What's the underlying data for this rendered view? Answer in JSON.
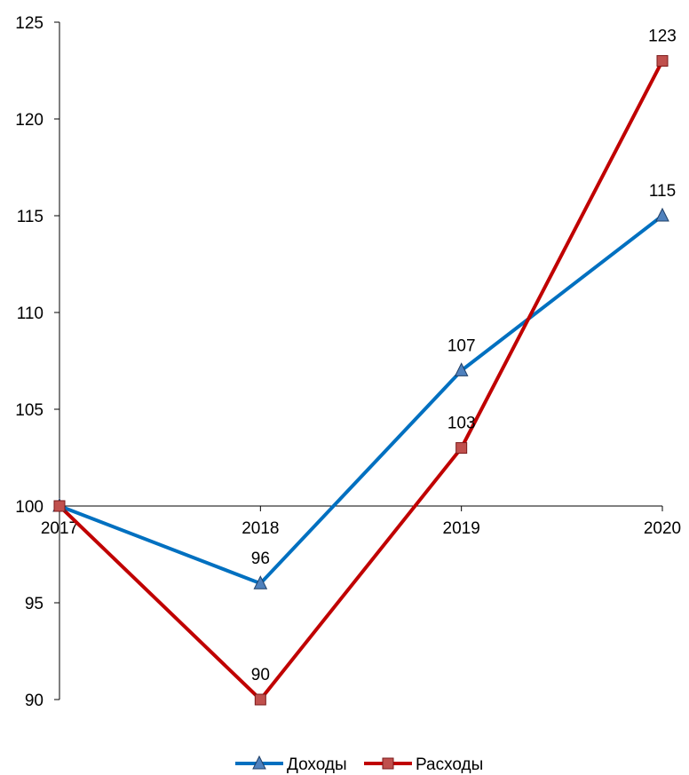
{
  "chart_data": {
    "type": "line",
    "categories": [
      "2017",
      "2018",
      "2019",
      "2020"
    ],
    "ylim": [
      90,
      125
    ],
    "y_ticks": [
      90,
      95,
      100,
      105,
      110,
      115,
      120,
      125
    ],
    "y_tick_labels": [
      "90",
      "95",
      "100",
      "105",
      "110",
      "115",
      "120",
      "125"
    ],
    "x_axis_crosses_at": 100,
    "grid": false,
    "legend": "bottom",
    "series": [
      {
        "name": "Доходы",
        "values": [
          100,
          96,
          107,
          115
        ],
        "labels": [
          "",
          "96",
          "107",
          "115"
        ],
        "color": "#0070C0",
        "marker": "triangle",
        "marker_color": "#4F81BD"
      },
      {
        "name": "Расходы",
        "values": [
          100,
          90,
          103,
          123
        ],
        "labels": [
          "",
          "90",
          "103",
          "123"
        ],
        "color": "#C00000",
        "marker": "square",
        "marker_color": "#C0504D"
      }
    ]
  }
}
